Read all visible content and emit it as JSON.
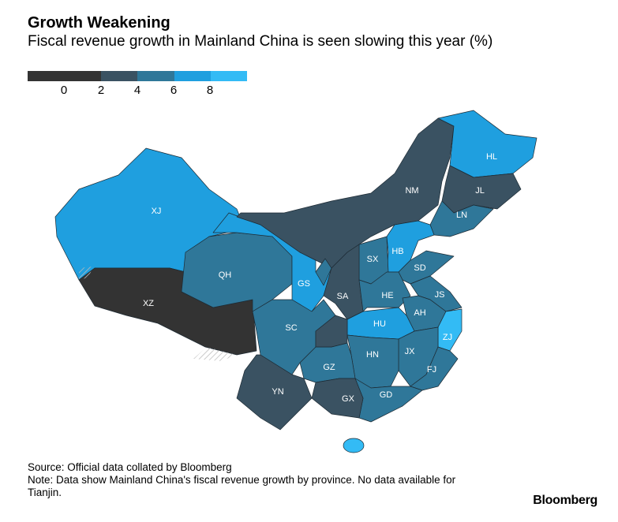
{
  "header": {
    "title": "Growth Weakening",
    "subtitle": "Fiscal revenue growth in Mainland China is seen slowing this year (%)"
  },
  "legend": {
    "bins": [
      {
        "label": "<0",
        "color": "#333333"
      },
      {
        "label": "0-2",
        "color": "#333333"
      },
      {
        "label": "2-4",
        "color": "#3a5262"
      },
      {
        "label": "4-6",
        "color": "#2f7799"
      },
      {
        "label": "6-8",
        "color": "#1f9fdf"
      },
      {
        "label": ">8",
        "color": "#33bbf5"
      }
    ],
    "ticks": [
      "0",
      "2",
      "4",
      "6",
      "8"
    ]
  },
  "provinces": [
    {
      "code": "XJ",
      "bin": "6-8"
    },
    {
      "code": "XZ",
      "bin": "0-2"
    },
    {
      "code": "QH",
      "bin": "4-6"
    },
    {
      "code": "GS",
      "bin": "6-8"
    },
    {
      "code": "NM",
      "bin": "2-4"
    },
    {
      "code": "HL",
      "bin": "6-8"
    },
    {
      "code": "JL",
      "bin": "2-4"
    },
    {
      "code": "LN",
      "bin": "4-6"
    },
    {
      "code": "HB",
      "bin": "6-8"
    },
    {
      "code": "SX",
      "bin": "4-6"
    },
    {
      "code": "SD",
      "bin": "4-6"
    },
    {
      "code": "SA",
      "bin": "2-4"
    },
    {
      "code": "HE",
      "bin": "4-6"
    },
    {
      "code": "JS",
      "bin": "4-6"
    },
    {
      "code": "AH",
      "bin": "4-6"
    },
    {
      "code": "HU",
      "bin": "6-8"
    },
    {
      "code": "ZJ",
      "bin": ">8"
    },
    {
      "code": "HN",
      "bin": "4-6"
    },
    {
      "code": "JX",
      "bin": "4-6"
    },
    {
      "code": "FJ",
      "bin": "4-6"
    },
    {
      "code": "GD",
      "bin": "4-6"
    },
    {
      "code": "GZ",
      "bin": "4-6"
    },
    {
      "code": "GX",
      "bin": "2-4"
    },
    {
      "code": "YN",
      "bin": "2-4"
    },
    {
      "code": "SC",
      "bin": "4-6"
    },
    {
      "code": "",
      "bin": "2-4",
      "unlabeled": "CQ"
    },
    {
      "code": "",
      "bin": "4-6",
      "unlabeled": "NX"
    },
    {
      "code": "",
      "bin": ">8",
      "unlabeled": "HI"
    }
  ],
  "footer": {
    "source": "Source: Official data collated by Bloomberg",
    "note": "Note: Data show Mainland China's fiscal revenue growth by province. No data available for Tianjin.",
    "brand": "Bloomberg"
  }
}
